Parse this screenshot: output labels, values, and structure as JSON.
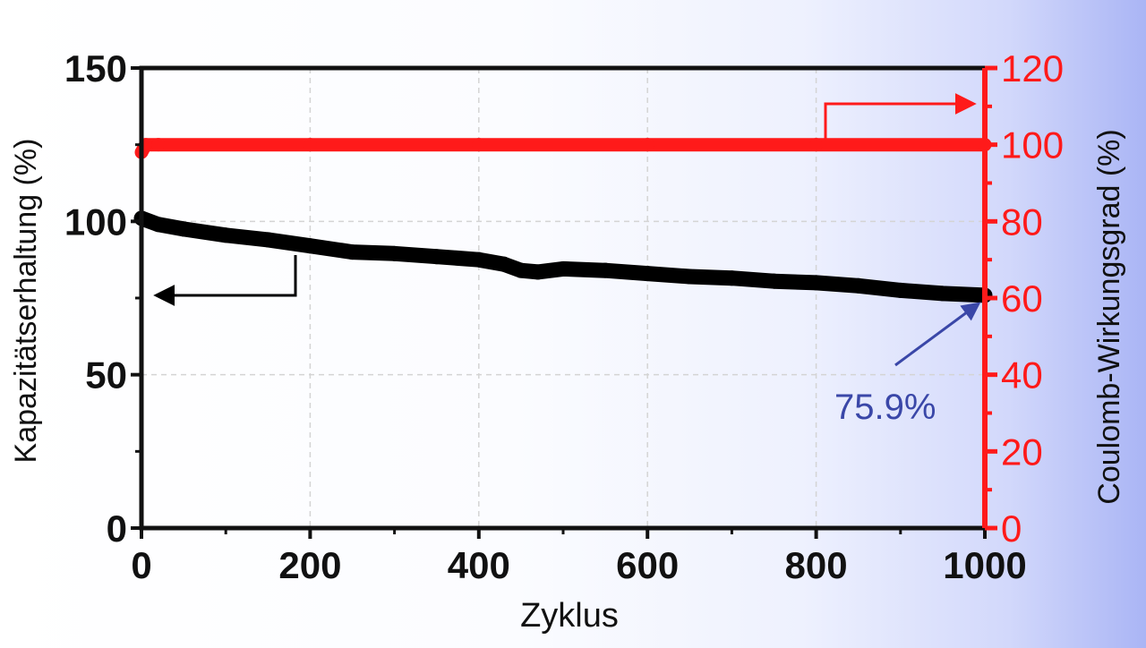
{
  "chart_data": {
    "type": "line",
    "x_axis": {
      "label": "Zyklus",
      "range": [
        0,
        1000
      ],
      "ticks": [
        0,
        200,
        400,
        600,
        800,
        1000
      ],
      "tick_labels": [
        "0",
        "200",
        "400",
        "600",
        "800",
        "1000"
      ]
    },
    "y_axis_left": {
      "label": "Kapazitätserhaltung (%)",
      "range": [
        0,
        150
      ],
      "ticks": [
        0,
        50,
        100,
        150
      ],
      "tick_labels": [
        "0",
        "50",
        "100",
        "150"
      ]
    },
    "y_axis_right": {
      "label": "Coulomb-Wirkungsgrad (%)",
      "range": [
        0,
        120
      ],
      "ticks": [
        0,
        20,
        40,
        60,
        80,
        100,
        120
      ],
      "tick_labels": [
        "0",
        "20",
        "40",
        "60",
        "80",
        "100",
        "120"
      ],
      "color": "#ff1a1a"
    },
    "grid": true,
    "series": [
      {
        "axis": "left",
        "color": "#000000",
        "x": [
          0,
          20,
          50,
          100,
          150,
          200,
          250,
          300,
          350,
          400,
          430,
          450,
          470,
          500,
          550,
          600,
          650,
          700,
          750,
          800,
          850,
          900,
          950,
          1000
        ],
        "y": [
          101,
          99,
          97.5,
          95.5,
          94,
          92,
          90,
          89.5,
          88.5,
          87.5,
          86,
          84,
          83.5,
          84.5,
          84,
          83,
          82,
          81.5,
          80.5,
          80,
          79,
          77.5,
          76.5,
          75.9
        ]
      },
      {
        "axis": "right",
        "color": "#ff1a1a",
        "x": [
          0,
          5,
          20,
          200,
          400,
          600,
          800,
          1000
        ],
        "y": [
          98,
          100,
          100,
          100,
          100,
          100,
          100,
          100
        ]
      }
    ],
    "annotations": [
      {
        "text": "75.9%",
        "points_to": {
          "x": 1000,
          "y": 75.9
        },
        "color": "#3a47a8"
      }
    ]
  }
}
